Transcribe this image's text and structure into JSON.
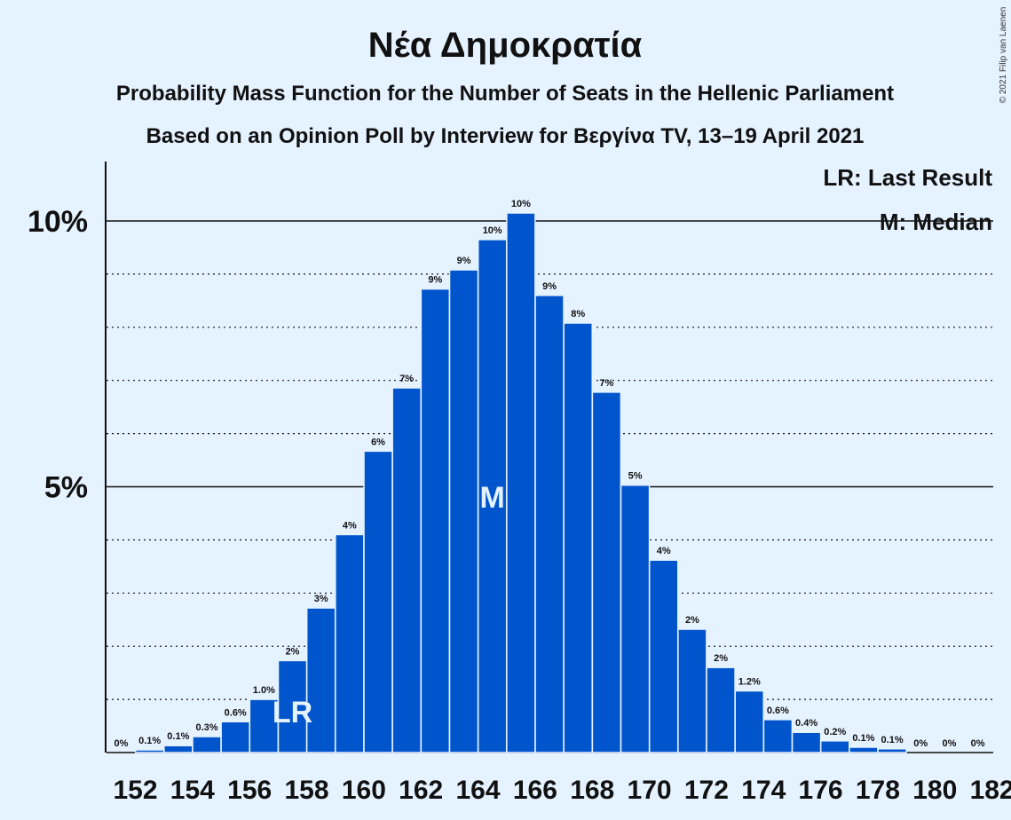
{
  "chart_data": {
    "type": "bar",
    "title": "Νέα Δημοκρατία",
    "subtitle": "Probability Mass Function for the Number of Seats in the Hellenic Parliament",
    "subtitle2": "Based on an Opinion Poll by Interview for Βεργίνα TV, 13–19 April 2021",
    "copyright": "© 2021 Filip van Laenen",
    "legend": {
      "last_result": "LR: Last Result",
      "median": "M: Median",
      "placement": "top-right"
    },
    "x": [
      152,
      153,
      154,
      155,
      156,
      157,
      158,
      159,
      160,
      161,
      162,
      163,
      164,
      165,
      166,
      167,
      168,
      169,
      170,
      171,
      172,
      173,
      174,
      175,
      176,
      177,
      178,
      179,
      180,
      181,
      182
    ],
    "values": [
      0,
      0.05,
      0.13,
      0.3,
      0.58,
      1.0,
      1.73,
      2.72,
      4.1,
      5.67,
      6.86,
      8.72,
      9.08,
      9.65,
      10.15,
      8.6,
      8.08,
      6.78,
      5.03,
      3.62,
      2.32,
      1.6,
      1.16,
      0.62,
      0.38,
      0.22,
      0.1,
      0.07,
      0,
      0,
      0
    ],
    "data_labels": [
      "0%",
      "0.1%",
      "0.1%",
      "0.3%",
      "0.6%",
      "1.0%",
      "2%",
      "3%",
      "4%",
      "6%",
      "7%",
      "9%",
      "9%",
      "10%",
      "10%",
      "9%",
      "8%",
      "7%",
      "5%",
      "4%",
      "2%",
      "2%",
      "1.2%",
      "0.6%",
      "0.4%",
      "0.2%",
      "0.1%",
      "0.1%",
      "0%",
      "0%",
      "0%"
    ],
    "x_tick_labels": [
      "152",
      "154",
      "156",
      "158",
      "160",
      "162",
      "164",
      "166",
      "168",
      "170",
      "172",
      "174",
      "176",
      "178",
      "180",
      "182"
    ],
    "y_ticks": [
      {
        "value": 5,
        "label": "5%"
      },
      {
        "value": 10,
        "label": "10%"
      }
    ],
    "ylim": [
      0,
      11
    ],
    "last_result_seat": 158,
    "last_result_marker": "LR",
    "median_seat": 165,
    "median_marker": "M",
    "grid": true,
    "colors": {
      "bar": "#0055cc",
      "background": "#e5f2ff"
    }
  }
}
